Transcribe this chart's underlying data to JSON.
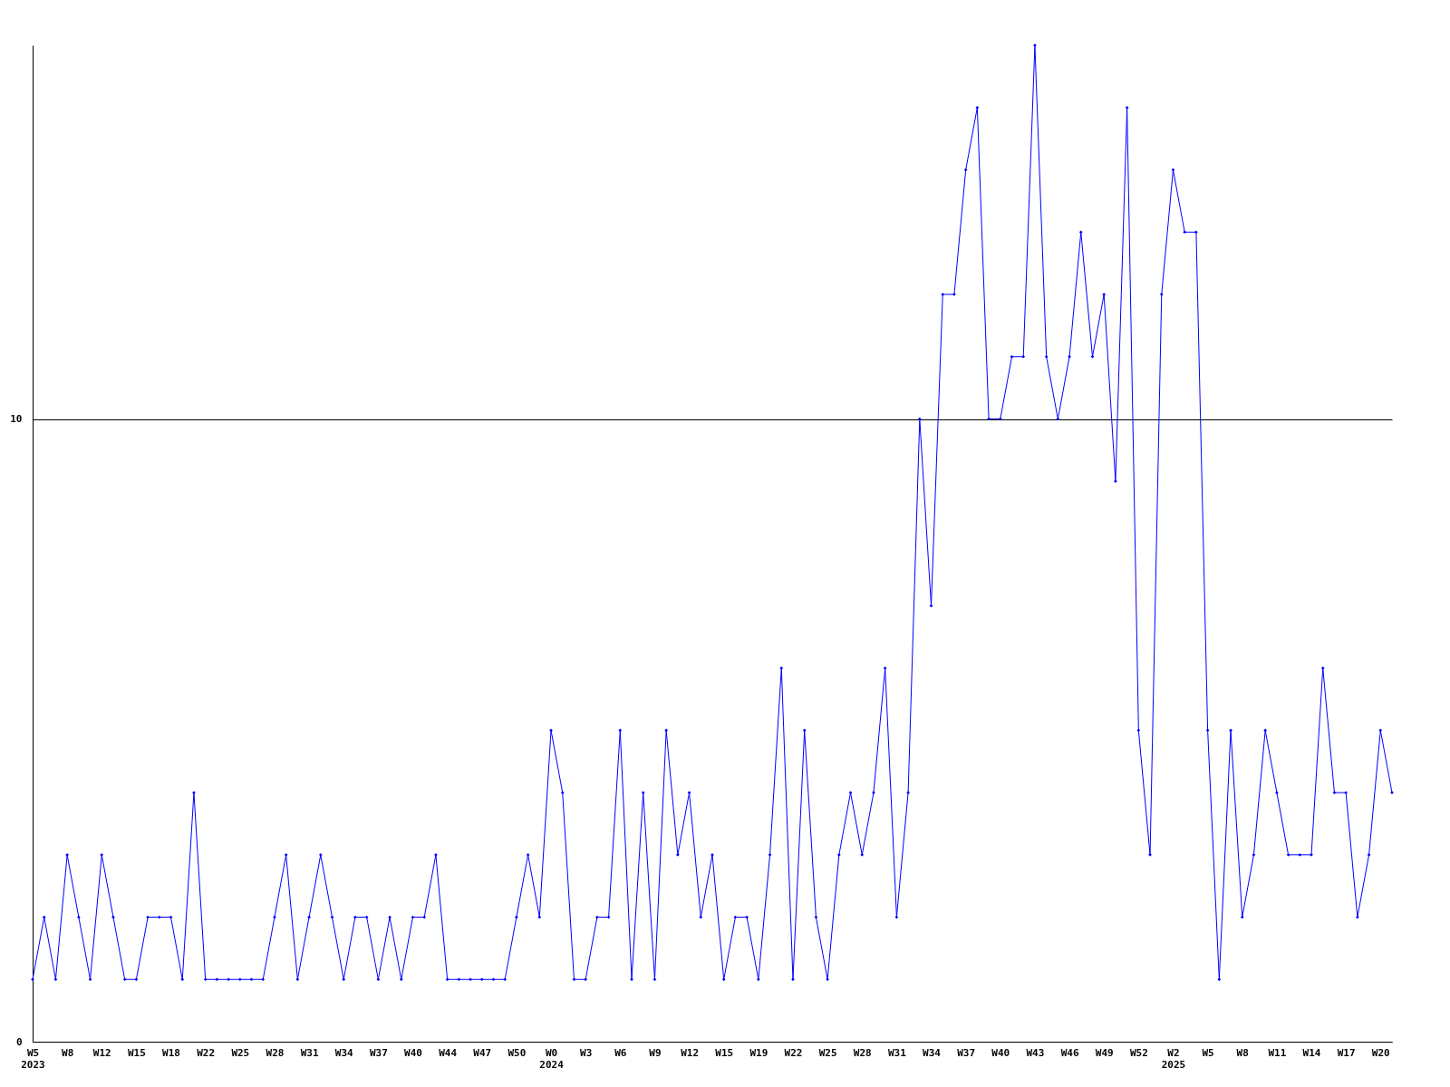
{
  "chart_data": {
    "type": "line",
    "categories": [
      "W5\n2023",
      null,
      null,
      "W8",
      null,
      null,
      "W12",
      null,
      null,
      "W15",
      null,
      null,
      "W18",
      null,
      null,
      "W22",
      null,
      null,
      "W25",
      null,
      null,
      "W28",
      null,
      null,
      "W31",
      null,
      null,
      "W34",
      null,
      null,
      "W37",
      null,
      null,
      "W40",
      null,
      null,
      "W44",
      null,
      null,
      "W47",
      null,
      null,
      "W50",
      null,
      null,
      "W0\n2024",
      null,
      null,
      "W3",
      null,
      null,
      "W6",
      null,
      null,
      "W9",
      null,
      null,
      "W12",
      null,
      null,
      "W15",
      null,
      null,
      "W19",
      null,
      null,
      "W22",
      null,
      null,
      "W25",
      null,
      null,
      "W28",
      null,
      null,
      "W31",
      null,
      null,
      "W34",
      null,
      null,
      "W37",
      null,
      null,
      "W40",
      null,
      null,
      "W43",
      null,
      null,
      "W46",
      null,
      null,
      "W49",
      null,
      null,
      "W52",
      null,
      null,
      "W2\n2025",
      null,
      null,
      "W5",
      null,
      null,
      "W8",
      null,
      null,
      "W11",
      null,
      null,
      "W14",
      null,
      null,
      "W17",
      null,
      null,
      "W20",
      null
    ],
    "series": [
      {
        "color": "#0000ff",
        "values": [
          1,
          2,
          1,
          3,
          2,
          1,
          3,
          2,
          1,
          1,
          2,
          2,
          2,
          1,
          4,
          1,
          1,
          1,
          1,
          1,
          1,
          2,
          3,
          1,
          2,
          3,
          2,
          1,
          2,
          2,
          1,
          2,
          1,
          2,
          2,
          3,
          1,
          1,
          1,
          1,
          1,
          1,
          2,
          3,
          2,
          5,
          4,
          1,
          1,
          2,
          2,
          5,
          1,
          4,
          1,
          5,
          3,
          4,
          2,
          3,
          1,
          2,
          2,
          1,
          3,
          6,
          1,
          5,
          2,
          1,
          3,
          4,
          3,
          4,
          6,
          2,
          4,
          10,
          7,
          12,
          12,
          14,
          15,
          10,
          10,
          11,
          11,
          16,
          11,
          10,
          11,
          13,
          11,
          12,
          9,
          15,
          5,
          3,
          12,
          14,
          13,
          13,
          5,
          1,
          5,
          2,
          3,
          5,
          4,
          3,
          3,
          3,
          6,
          4,
          4,
          2,
          3,
          5,
          4
        ]
      }
    ],
    "ylim": [
      0,
      16
    ],
    "yticks": [
      0,
      10
    ],
    "grid": "y",
    "marker": "diamond",
    "line_style": "solid"
  }
}
